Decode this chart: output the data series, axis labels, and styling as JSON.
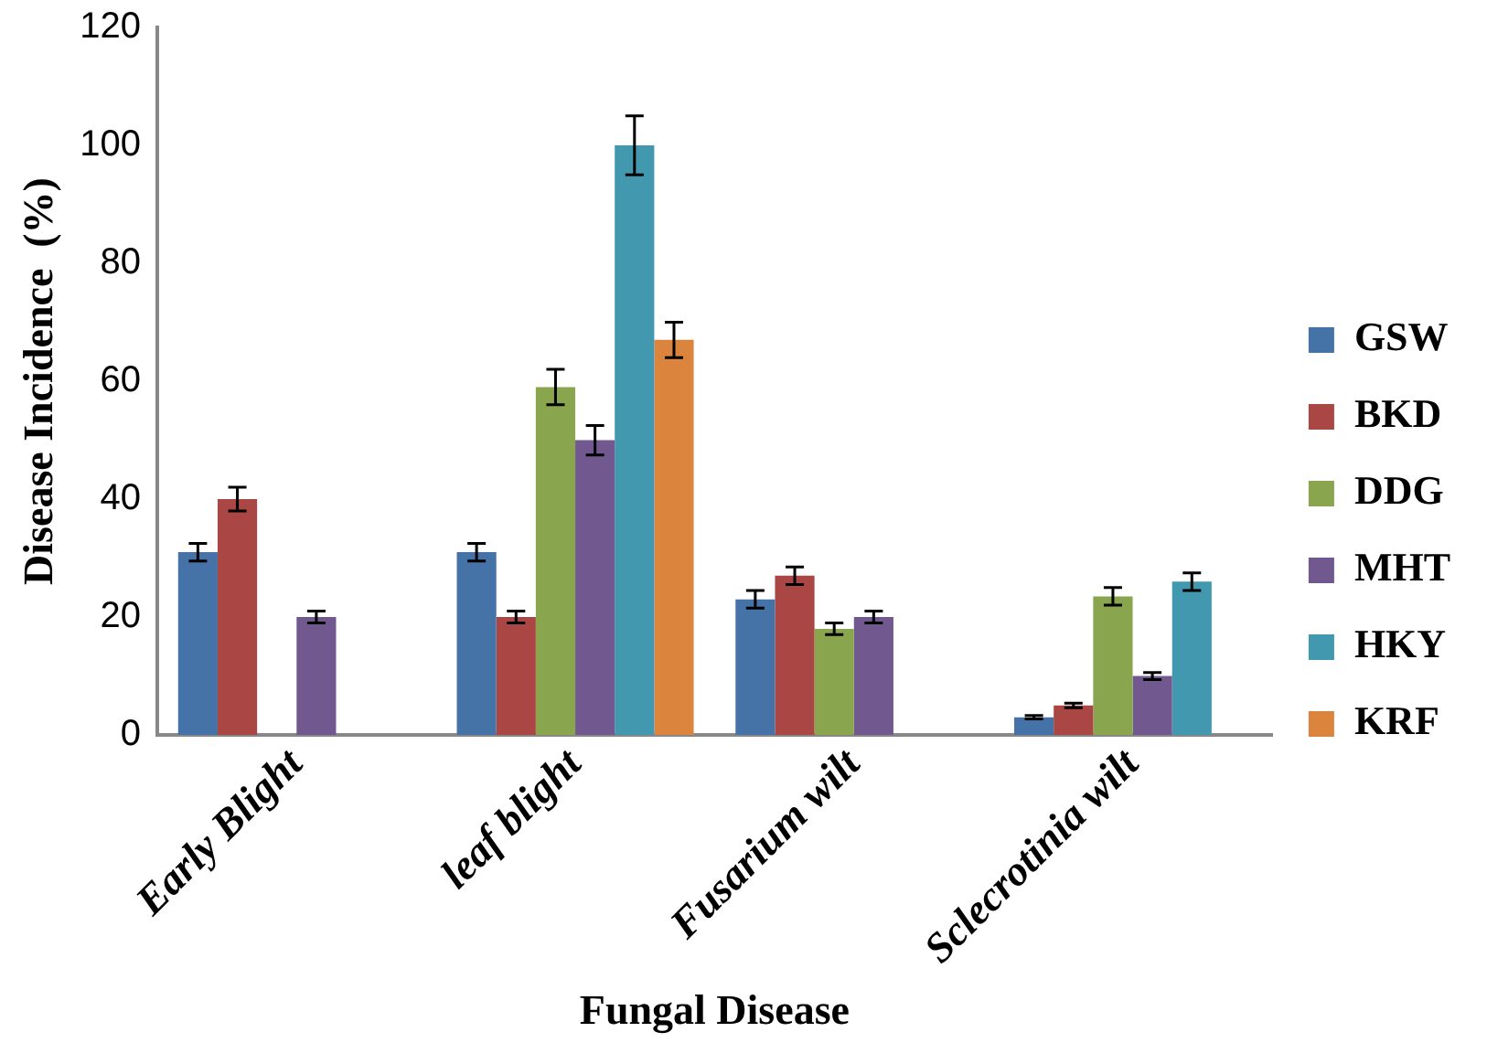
{
  "chart_data": {
    "type": "bar",
    "xlabel": "Fungal Disease",
    "ylabel": "Disease Incidence  (%)",
    "categories": [
      "Early Blight",
      "leaf blight",
      "Fusarium wilt",
      "Sclecrotinia wilt"
    ],
    "series": [
      {
        "name": "GSW",
        "color": "#4572a7",
        "values": [
          31,
          31,
          23,
          3
        ],
        "errors": [
          1.5,
          1.5,
          1.5,
          0.3
        ]
      },
      {
        "name": "BKD",
        "color": "#aa4643",
        "values": [
          40,
          20,
          27,
          5
        ],
        "errors": [
          2,
          1,
          1.5,
          0.4
        ]
      },
      {
        "name": "DDG",
        "color": "#89a54e",
        "values": [
          0,
          59,
          18,
          23.5
        ],
        "errors": [
          null,
          3,
          1,
          1.5
        ]
      },
      {
        "name": "MHT",
        "color": "#71588f",
        "values": [
          20,
          50,
          20,
          10
        ],
        "errors": [
          1,
          2.5,
          1,
          0.6
        ]
      },
      {
        "name": "HKY",
        "color": "#4198af",
        "values": [
          0,
          100,
          0,
          26
        ],
        "errors": [
          null,
          5,
          null,
          1.5
        ]
      },
      {
        "name": "KRF",
        "color": "#db843d",
        "values": [
          0,
          67,
          0,
          0
        ],
        "errors": [
          null,
          3,
          null,
          null
        ]
      }
    ],
    "ylim": [
      0,
      120
    ],
    "yticks": [
      0,
      20,
      40,
      60,
      80,
      100,
      120
    ],
    "grid": false,
    "legend": "right"
  }
}
